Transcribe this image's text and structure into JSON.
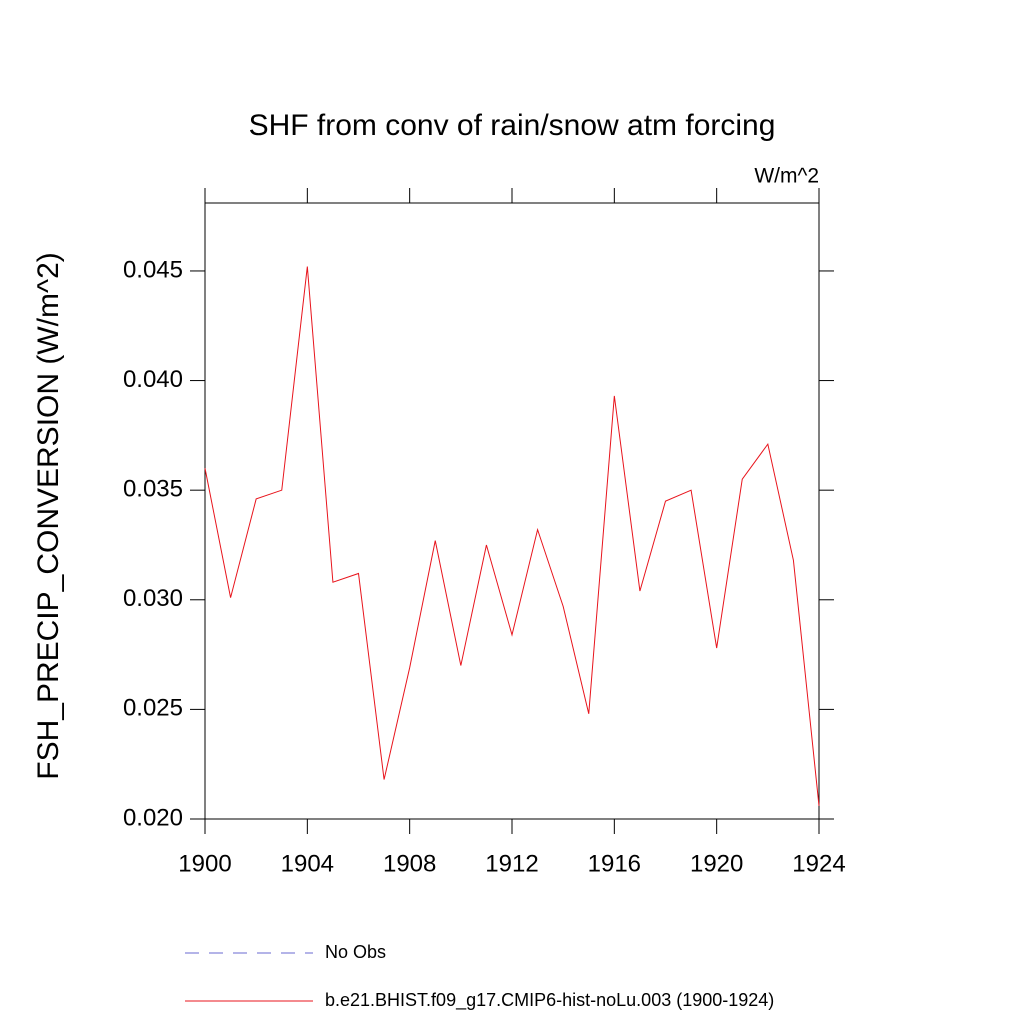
{
  "chart_data": {
    "type": "line",
    "title": "SHF from conv of rain/snow atm forcing",
    "units": "W/m^2",
    "y_label": "FSH_PRECIP_CONVERSION  (W/m^2)",
    "x": [
      1900,
      1901,
      1902,
      1903,
      1904,
      1905,
      1906,
      1907,
      1908,
      1909,
      1910,
      1911,
      1912,
      1913,
      1914,
      1915,
      1916,
      1917,
      1918,
      1919,
      1920,
      1921,
      1922,
      1923,
      1924
    ],
    "series": [
      {
        "name": "No Obs",
        "color": "#6a6ad0",
        "dash": true,
        "values": [
          null,
          null,
          null,
          null,
          null,
          null,
          null,
          null,
          null,
          null,
          null,
          null,
          null,
          null,
          null,
          null,
          null,
          null,
          null,
          null,
          null,
          null,
          null,
          null,
          null
        ]
      },
      {
        "name": "b.e21.BHIST.f09_g17.CMIP6-hist-noLu.003 (1900-1924)",
        "color": "#e8141c",
        "dash": false,
        "values": [
          0.036,
          0.0301,
          0.0346,
          0.035,
          0.0452,
          0.0308,
          0.0312,
          0.0218,
          0.0269,
          0.0327,
          0.027,
          0.0325,
          0.0284,
          0.0332,
          0.0297,
          0.0248,
          0.0393,
          0.0304,
          0.0345,
          0.035,
          0.0278,
          0.0355,
          0.0371,
          0.0318,
          0.0206
        ]
      }
    ],
    "xlim": [
      1900,
      1924
    ],
    "xticks": [
      1900,
      1904,
      1908,
      1912,
      1916,
      1920,
      1924
    ],
    "ylim": [
      0.02,
      0.0481
    ],
    "yticks": [
      {
        "value": 0.02,
        "label": "0.020"
      },
      0.025,
      {
        "value": 0.03,
        "label": "0.030"
      },
      0.035,
      {
        "value": 0.04,
        "label": "0.040"
      },
      0.045
    ],
    "grid": false
  }
}
